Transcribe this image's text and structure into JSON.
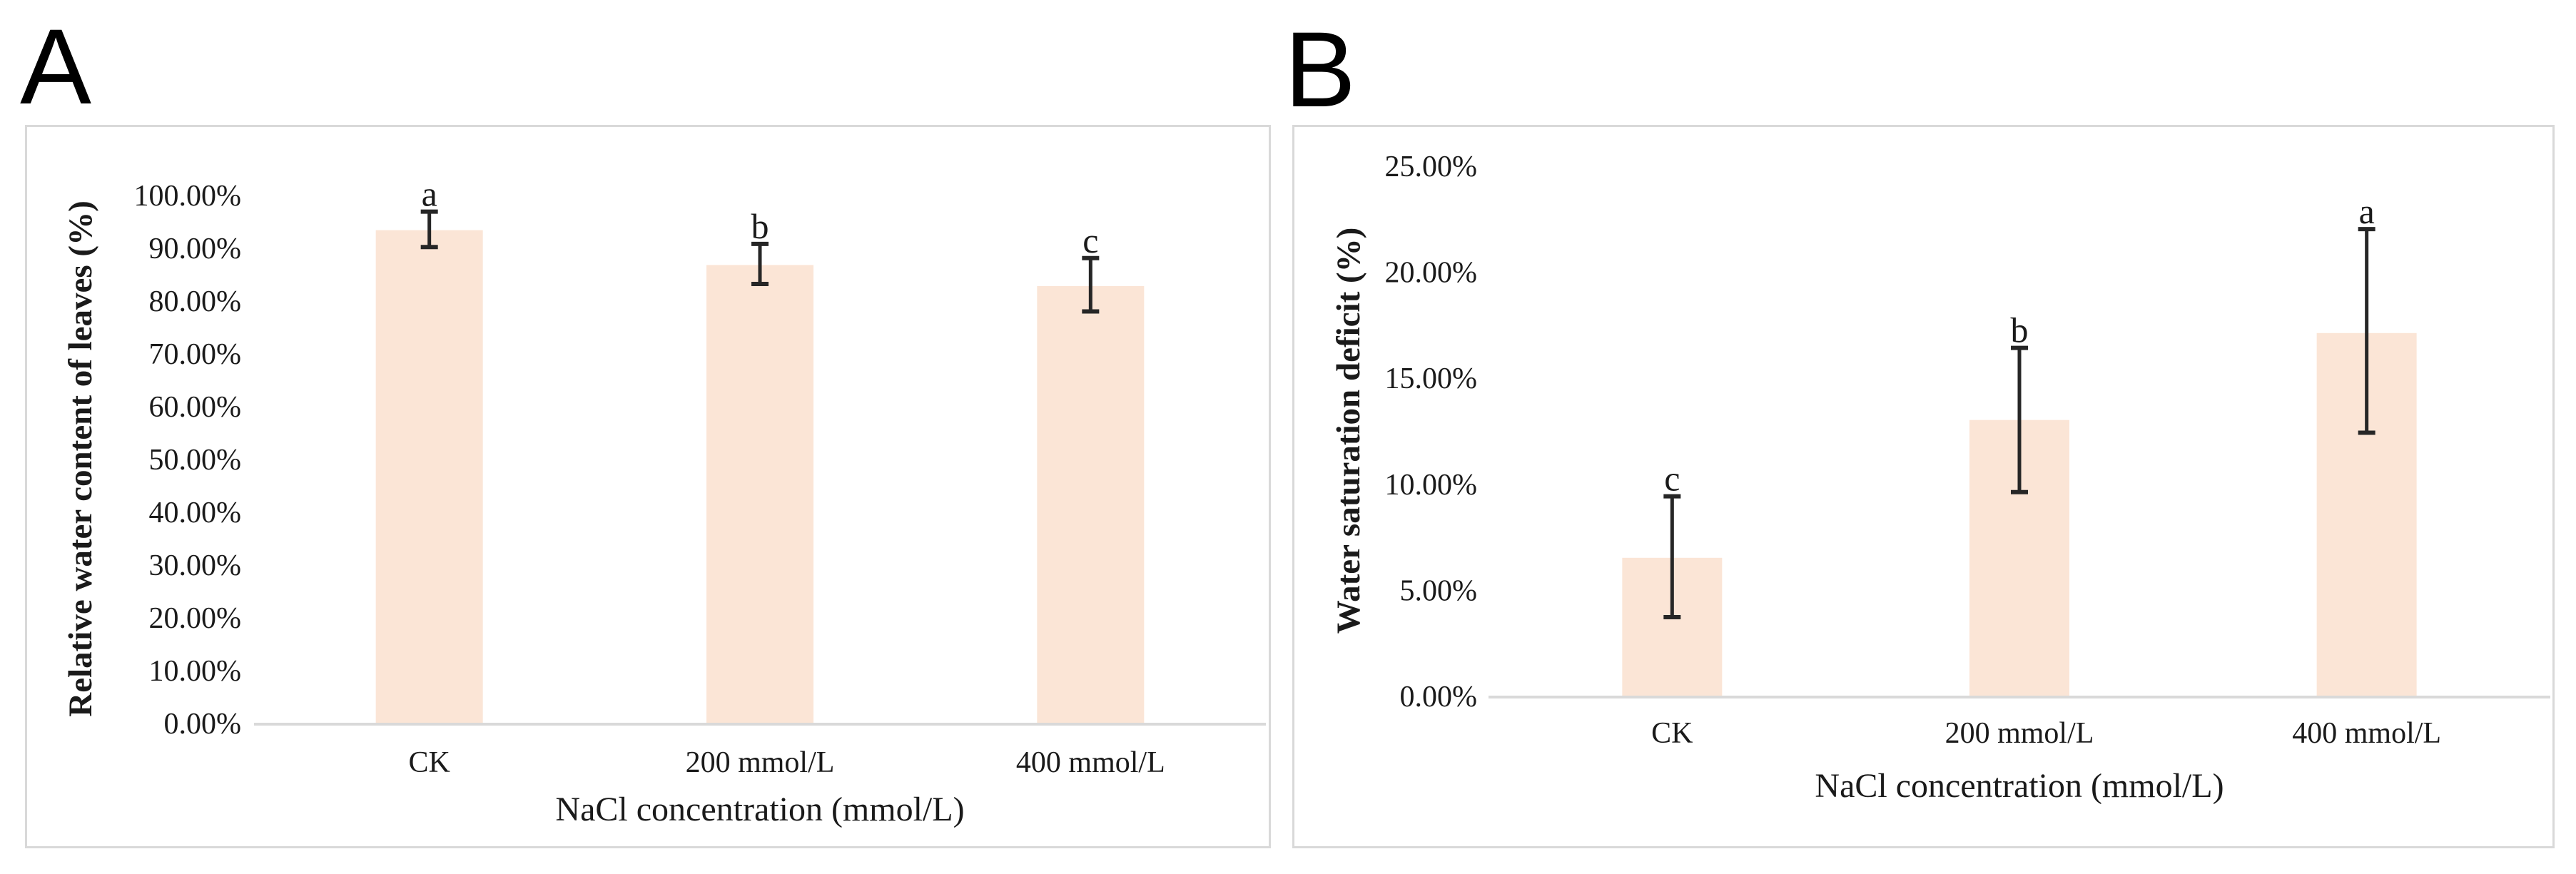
{
  "colors": {
    "bar_fill": "#FBE5D6",
    "axis_line": "#D9D9D9",
    "panel_border": "#D9D9D9",
    "error_bar": "#262626",
    "text": "#1A1A1A",
    "background": "#FFFFFF"
  },
  "chart_data": [
    {
      "type": "bar",
      "panel_label": "A",
      "title": "",
      "xlabel": "NaCl concentration (mmol/L)",
      "ylabel": "Relative water content of leaves (%)",
      "categories": [
        "CK",
        "200 mmol/L",
        "400 mmol/L"
      ],
      "values": [
        93.3,
        86.7,
        82.7
      ],
      "error_top": [
        96.8,
        90.7,
        88.0
      ],
      "error_bottom": [
        90.1,
        83.1,
        77.9
      ],
      "sig_letters": [
        "a",
        "b",
        "c"
      ],
      "values_unit": "percent",
      "ylim": [
        0,
        100
      ],
      "ytick_step": 10,
      "ytick_labels": [
        "0.00%",
        "10.00%",
        "20.00%",
        "30.00%",
        "40.00%",
        "50.00%",
        "60.00%",
        "70.00%",
        "80.00%",
        "90.00%",
        "100.00%"
      ],
      "grid": false,
      "legend": "none",
      "bar_color": "#FBE5D6"
    },
    {
      "type": "bar",
      "panel_label": "B",
      "title": "",
      "xlabel": "NaCl concentration (mmol/L)",
      "ylabel": "Water saturation deficit (%)",
      "categories": [
        "CK",
        "200 mmol/L",
        "400 mmol/L"
      ],
      "values": [
        6.5,
        13.0,
        17.1
      ],
      "error_top": [
        9.4,
        16.4,
        22.0
      ],
      "error_bottom": [
        3.7,
        9.6,
        12.4
      ],
      "sig_letters": [
        "c",
        "b",
        "a"
      ],
      "values_unit": "percent",
      "ylim": [
        0,
        25
      ],
      "ytick_step": 5,
      "ytick_labels": [
        "0.00%",
        "5.00%",
        "10.00%",
        "15.00%",
        "20.00%",
        "25.00%"
      ],
      "grid": false,
      "legend": "none",
      "bar_color": "#FBE5D6"
    }
  ]
}
